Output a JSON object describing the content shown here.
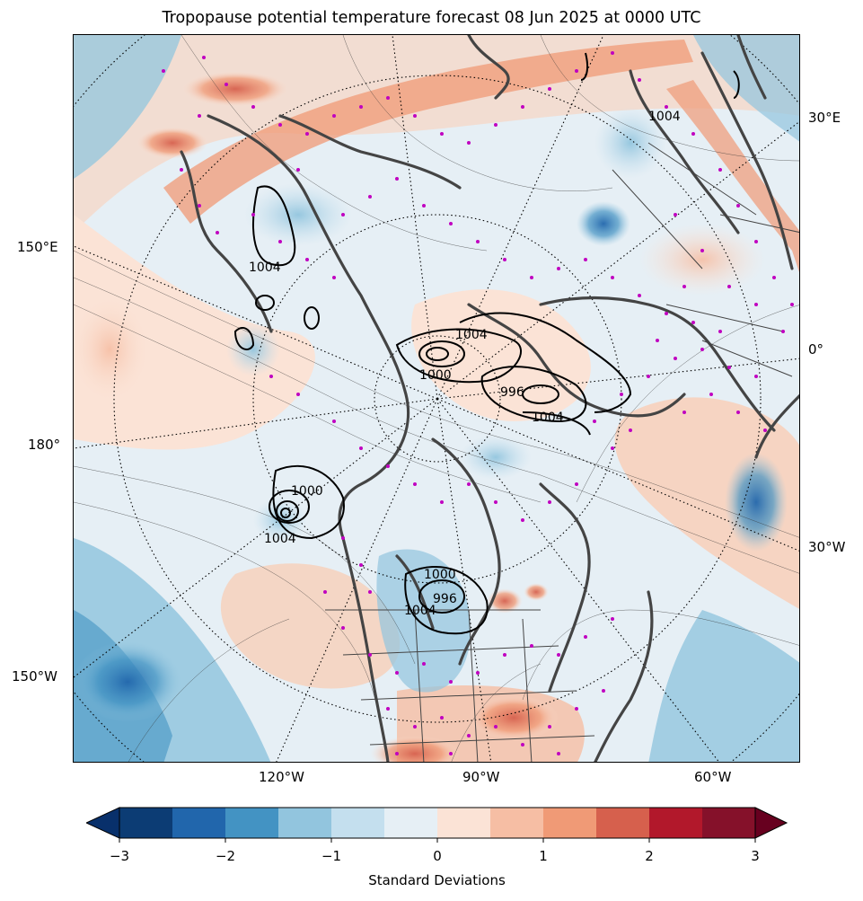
{
  "title": "Tropopause potential temperature forecast 08 Jun 2025 at 0000 UTC",
  "map": {
    "type": "polar-stereographic",
    "colors": {
      "coastline": "#444444",
      "station_marker": "#c000c0",
      "graticule": "#000000",
      "pressure_contour": "#000000"
    },
    "left_labels": [
      "150°E",
      "180°",
      "150°W"
    ],
    "right_labels": [
      "30°E",
      "0°",
      "30°W"
    ],
    "bottom_labels": [
      "120°W",
      "90°W",
      "60°W"
    ],
    "pressure_labels": [
      "1004",
      "1004",
      "1000",
      "996",
      "1004",
      "1004",
      "1000",
      "1004",
      "1000",
      "996",
      "1004"
    ]
  },
  "colorbar": {
    "label": "Standard Deviations",
    "ticks": [
      "−3",
      "−2",
      "−1",
      "0",
      "1",
      "2",
      "3"
    ],
    "range": [
      -3,
      3
    ],
    "extend": "both",
    "colors": [
      "#0c3c74",
      "#2166ac",
      "#4393c3",
      "#92c5de",
      "#c4dfee",
      "#e6eff5",
      "#fbe3d6",
      "#f6bea4",
      "#f09a76",
      "#d6604d",
      "#b2182b",
      "#85112a"
    ],
    "under_color": "#08306b",
    "over_color": "#67001f"
  }
}
